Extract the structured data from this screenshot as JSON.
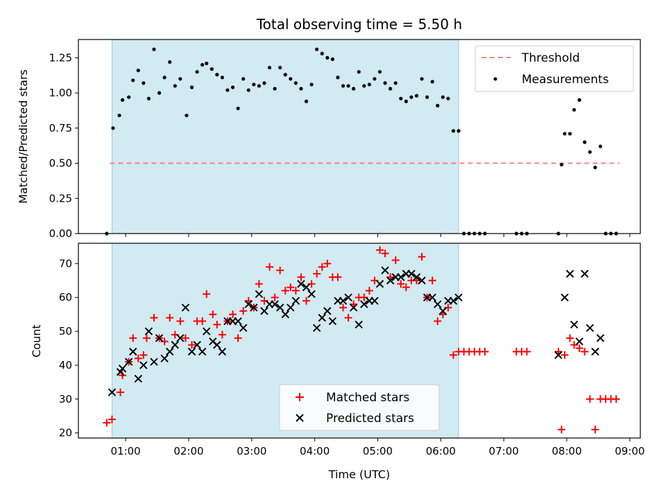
{
  "chart_data": [
    {
      "type": "scatter",
      "title": "Total observing time = 5.50 h",
      "xlabel": "",
      "ylabel": "Matched/Predicted stars",
      "xlim": [
        "00:15",
        "09:10"
      ],
      "ylim": [
        0,
        1.38
      ],
      "yticks": [
        "0.00",
        "0.25",
        "0.50",
        "0.75",
        "1.00",
        "1.25"
      ],
      "grid": false,
      "legend_position": "top-right",
      "observing_window": [
        "00:47",
        "06:17"
      ],
      "threshold": {
        "name": "Threshold",
        "value": 0.5,
        "x_range": [
          "00:45",
          "08:50"
        ],
        "color": "#ff7f7f"
      },
      "series": [
        {
          "name": "Measurements",
          "color": "#000000",
          "points": [
            [
              "00:42",
              0.0
            ],
            [
              "00:48",
              0.75
            ],
            [
              "00:54",
              0.84
            ],
            [
              "00:57",
              0.95
            ],
            [
              "01:03",
              0.97
            ],
            [
              "01:07",
              1.09
            ],
            [
              "01:12",
              1.16
            ],
            [
              "01:17",
              1.07
            ],
            [
              "01:22",
              0.96
            ],
            [
              "01:27",
              1.31
            ],
            [
              "01:32",
              1.0
            ],
            [
              "01:37",
              1.11
            ],
            [
              "01:42",
              1.22
            ],
            [
              "01:47",
              1.05
            ],
            [
              "01:52",
              1.1
            ],
            [
              "01:58",
              0.84
            ],
            [
              "02:03",
              1.04
            ],
            [
              "02:08",
              1.15
            ],
            [
              "02:13",
              1.2
            ],
            [
              "02:17",
              1.21
            ],
            [
              "02:22",
              1.17
            ],
            [
              "02:27",
              1.13
            ],
            [
              "02:32",
              1.11
            ],
            [
              "02:37",
              1.02
            ],
            [
              "02:42",
              1.04
            ],
            [
              "02:47",
              0.89
            ],
            [
              "02:52",
              1.1
            ],
            [
              "02:57",
              1.02
            ],
            [
              "03:02",
              1.06
            ],
            [
              "03:07",
              1.05
            ],
            [
              "03:12",
              1.07
            ],
            [
              "03:17",
              1.18
            ],
            [
              "03:22",
              1.03
            ],
            [
              "03:27",
              1.18
            ],
            [
              "03:32",
              1.13
            ],
            [
              "03:37",
              1.1
            ],
            [
              "03:42",
              1.07
            ],
            [
              "03:47",
              1.03
            ],
            [
              "03:52",
              0.94
            ],
            [
              "03:57",
              1.06
            ],
            [
              "04:02",
              1.31
            ],
            [
              "04:07",
              1.28
            ],
            [
              "04:12",
              1.25
            ],
            [
              "04:17",
              1.24
            ],
            [
              "04:22",
              1.11
            ],
            [
              "04:27",
              1.05
            ],
            [
              "04:32",
              1.05
            ],
            [
              "04:37",
              1.03
            ],
            [
              "04:42",
              1.15
            ],
            [
              "04:47",
              1.05
            ],
            [
              "04:52",
              1.06
            ],
            [
              "04:57",
              1.1
            ],
            [
              "05:02",
              1.15
            ],
            [
              "05:07",
              1.07
            ],
            [
              "05:12",
              1.03
            ],
            [
              "05:17",
              1.07
            ],
            [
              "05:22",
              0.96
            ],
            [
              "05:27",
              0.94
            ],
            [
              "05:32",
              0.97
            ],
            [
              "05:37",
              0.98
            ],
            [
              "05:42",
              1.1
            ],
            [
              "05:47",
              0.97
            ],
            [
              "05:52",
              1.08
            ],
            [
              "05:57",
              0.91
            ],
            [
              "06:02",
              0.97
            ],
            [
              "06:07",
              0.96
            ],
            [
              "06:12",
              0.73
            ],
            [
              "06:17",
              0.73
            ],
            [
              "06:22",
              0.0
            ],
            [
              "06:27",
              0.0
            ],
            [
              "06:32",
              0.0
            ],
            [
              "06:37",
              0.0
            ],
            [
              "06:42",
              0.0
            ],
            [
              "07:12",
              0.0
            ],
            [
              "07:17",
              0.0
            ],
            [
              "07:22",
              0.0
            ],
            [
              "07:52",
              0.0
            ],
            [
              "07:55",
              0.49
            ],
            [
              "07:58",
              0.71
            ],
            [
              "08:03",
              0.71
            ],
            [
              "08:07",
              0.88
            ],
            [
              "08:12",
              0.95
            ],
            [
              "08:17",
              0.65
            ],
            [
              "08:22",
              0.58
            ],
            [
              "08:27",
              0.47
            ],
            [
              "08:32",
              0.62
            ],
            [
              "08:37",
              0.0
            ],
            [
              "08:42",
              0.0
            ],
            [
              "08:47",
              0.0
            ]
          ]
        }
      ]
    },
    {
      "type": "scatter",
      "title": "",
      "xlabel": "Time (UTC)",
      "ylabel": "Count",
      "xlim": [
        "00:15",
        "09:10"
      ],
      "ylim": [
        18.5,
        76
      ],
      "xticks": [
        "01:00",
        "02:00",
        "03:00",
        "04:00",
        "05:00",
        "06:00",
        "07:00",
        "08:00",
        "09:00"
      ],
      "yticks": [
        "20",
        "30",
        "40",
        "50",
        "60",
        "70"
      ],
      "grid": false,
      "legend_position": "bottom-center",
      "observing_window": [
        "00:47",
        "06:17"
      ],
      "series": [
        {
          "name": "Matched stars",
          "color": "#ff0000",
          "marker": "+",
          "points": [
            [
              "00:42",
              23
            ],
            [
              "00:47",
              24
            ],
            [
              "00:55",
              32
            ],
            [
              "00:57",
              37
            ],
            [
              "01:03",
              41
            ],
            [
              "01:07",
              48
            ],
            [
              "01:12",
              42
            ],
            [
              "01:17",
              43
            ],
            [
              "01:20",
              48
            ],
            [
              "01:27",
              54
            ],
            [
              "01:32",
              48
            ],
            [
              "01:37",
              47
            ],
            [
              "01:42",
              54
            ],
            [
              "01:47",
              49
            ],
            [
              "01:52",
              53
            ],
            [
              "01:57",
              48
            ],
            [
              "02:03",
              46
            ],
            [
              "02:08",
              53
            ],
            [
              "02:13",
              53
            ],
            [
              "02:17",
              61
            ],
            [
              "02:23",
              55
            ],
            [
              "02:27",
              52
            ],
            [
              "02:32",
              49
            ],
            [
              "02:37",
              53
            ],
            [
              "02:42",
              55
            ],
            [
              "02:47",
              48
            ],
            [
              "02:52",
              56
            ],
            [
              "02:57",
              59
            ],
            [
              "03:02",
              57
            ],
            [
              "03:07",
              64
            ],
            [
              "03:12",
              59
            ],
            [
              "03:17",
              69
            ],
            [
              "03:22",
              60
            ],
            [
              "03:27",
              68
            ],
            [
              "03:32",
              62
            ],
            [
              "03:37",
              63
            ],
            [
              "03:42",
              62
            ],
            [
              "03:47",
              66
            ],
            [
              "03:52",
              59
            ],
            [
              "03:57",
              64
            ],
            [
              "04:02",
              67
            ],
            [
              "04:07",
              69
            ],
            [
              "04:12",
              70
            ],
            [
              "04:17",
              66
            ],
            [
              "04:22",
              66
            ],
            [
              "04:27",
              57
            ],
            [
              "04:32",
              54
            ],
            [
              "04:37",
              58
            ],
            [
              "04:42",
              60
            ],
            [
              "04:47",
              60
            ],
            [
              "04:52",
              62
            ],
            [
              "04:57",
              65
            ],
            [
              "05:02",
              74
            ],
            [
              "05:07",
              73
            ],
            [
              "05:12",
              66
            ],
            [
              "05:17",
              71
            ],
            [
              "05:22",
              64
            ],
            [
              "05:27",
              63
            ],
            [
              "05:32",
              65
            ],
            [
              "05:37",
              65
            ],
            [
              "05:42",
              72
            ],
            [
              "05:47",
              60
            ],
            [
              "05:52",
              65
            ],
            [
              "05:57",
              53
            ],
            [
              "06:02",
              55
            ],
            [
              "06:07",
              57
            ],
            [
              "06:12",
              43
            ],
            [
              "06:17",
              44
            ],
            [
              "06:22",
              44
            ],
            [
              "06:27",
              44
            ],
            [
              "06:32",
              44
            ],
            [
              "06:37",
              44
            ],
            [
              "06:42",
              44
            ],
            [
              "07:12",
              44
            ],
            [
              "07:17",
              44
            ],
            [
              "07:22",
              44
            ],
            [
              "07:52",
              44
            ],
            [
              "07:55",
              21
            ],
            [
              "07:58",
              43
            ],
            [
              "08:03",
              48
            ],
            [
              "08:07",
              46
            ],
            [
              "08:12",
              45
            ],
            [
              "08:17",
              44
            ],
            [
              "08:22",
              30
            ],
            [
              "08:27",
              21
            ],
            [
              "08:32",
              30
            ],
            [
              "08:37",
              30
            ],
            [
              "08:42",
              30
            ],
            [
              "08:47",
              30
            ]
          ]
        },
        {
          "name": "Predicted stars",
          "color": "#000000",
          "marker": "x",
          "points": [
            [
              "00:47",
              32
            ],
            [
              "00:55",
              38
            ],
            [
              "00:57",
              39
            ],
            [
              "01:03",
              41
            ],
            [
              "01:07",
              44
            ],
            [
              "01:12",
              36
            ],
            [
              "01:17",
              40
            ],
            [
              "01:22",
              50
            ],
            [
              "01:27",
              41
            ],
            [
              "01:32",
              48
            ],
            [
              "01:37",
              42
            ],
            [
              "01:42",
              44
            ],
            [
              "01:47",
              46
            ],
            [
              "01:52",
              48
            ],
            [
              "01:57",
              57
            ],
            [
              "02:03",
              44
            ],
            [
              "02:08",
              46
            ],
            [
              "02:13",
              44
            ],
            [
              "02:17",
              50
            ],
            [
              "02:23",
              47
            ],
            [
              "02:27",
              46
            ],
            [
              "02:32",
              44
            ],
            [
              "02:37",
              53
            ],
            [
              "02:42",
              53
            ],
            [
              "02:47",
              53
            ],
            [
              "02:52",
              51
            ],
            [
              "02:57",
              58
            ],
            [
              "03:02",
              57
            ],
            [
              "03:07",
              61
            ],
            [
              "03:12",
              56
            ],
            [
              "03:17",
              58
            ],
            [
              "03:22",
              58
            ],
            [
              "03:27",
              57
            ],
            [
              "03:32",
              55
            ],
            [
              "03:37",
              57
            ],
            [
              "03:42",
              59
            ],
            [
              "03:47",
              64
            ],
            [
              "03:52",
              63
            ],
            [
              "03:57",
              61
            ],
            [
              "04:02",
              51
            ],
            [
              "04:07",
              54
            ],
            [
              "04:12",
              56
            ],
            [
              "04:17",
              53
            ],
            [
              "04:22",
              59
            ],
            [
              "04:27",
              59
            ],
            [
              "04:32",
              60
            ],
            [
              "04:37",
              57
            ],
            [
              "04:42",
              52
            ],
            [
              "04:47",
              58
            ],
            [
              "04:52",
              59
            ],
            [
              "04:57",
              59
            ],
            [
              "05:02",
              64
            ],
            [
              "05:07",
              68
            ],
            [
              "05:12",
              65
            ],
            [
              "05:17",
              66
            ],
            [
              "05:22",
              66
            ],
            [
              "05:27",
              67
            ],
            [
              "05:32",
              67
            ],
            [
              "05:37",
              66
            ],
            [
              "05:42",
              65
            ],
            [
              "05:47",
              60
            ],
            [
              "05:52",
              60
            ],
            [
              "05:57",
              58
            ],
            [
              "06:02",
              56
            ],
            [
              "06:07",
              59
            ],
            [
              "06:12",
              59
            ],
            [
              "06:17",
              60
            ],
            [
              "07:52",
              43
            ],
            [
              "07:58",
              60
            ],
            [
              "08:03",
              67
            ],
            [
              "08:07",
              52
            ],
            [
              "08:12",
              47
            ],
            [
              "08:17",
              67
            ],
            [
              "08:22",
              51
            ],
            [
              "08:27",
              44
            ],
            [
              "08:32",
              48
            ]
          ]
        }
      ]
    }
  ]
}
